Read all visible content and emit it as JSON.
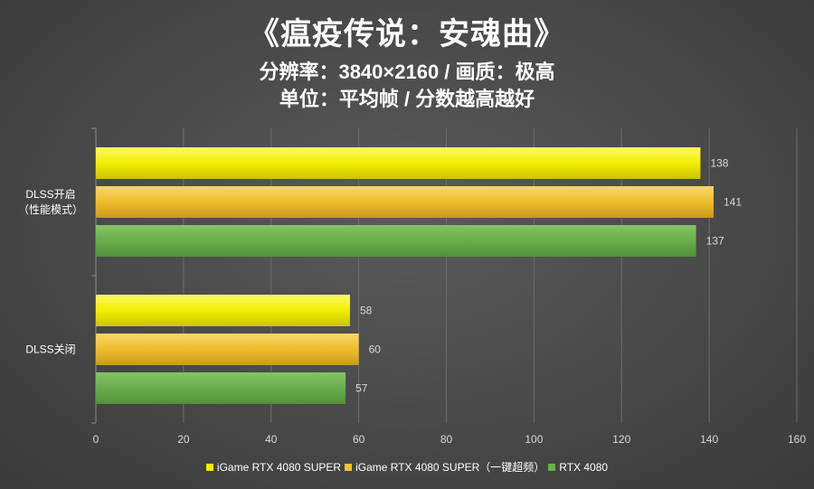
{
  "header": {
    "title": "《瘟疫传说：安魂曲》",
    "subtitle1": "分辨率：3840×2160 / 画质：极高",
    "subtitle2": "单位：平均帧 / 分数越高越好"
  },
  "chart_data": {
    "type": "bar",
    "orientation": "horizontal",
    "categories": [
      [
        "DLSS开启",
        "（性能模式）"
      ],
      [
        "DLSS关闭"
      ]
    ],
    "series": [
      {
        "name": "iGame RTX 4080 SUPER",
        "values": [
          138,
          58
        ],
        "color": "#f5f000"
      },
      {
        "name": "iGame RTX 4080 SUPER（一键超频）",
        "values": [
          141,
          60
        ],
        "color": "#f2c230"
      },
      {
        "name": "RTX 4080",
        "values": [
          137,
          57
        ],
        "color": "#6ab04c"
      }
    ],
    "xlim": [
      0,
      160
    ],
    "xticks": [
      0,
      20,
      40,
      60,
      80,
      100,
      120,
      140,
      160
    ],
    "grid": true,
    "legend_position": "bottom"
  }
}
